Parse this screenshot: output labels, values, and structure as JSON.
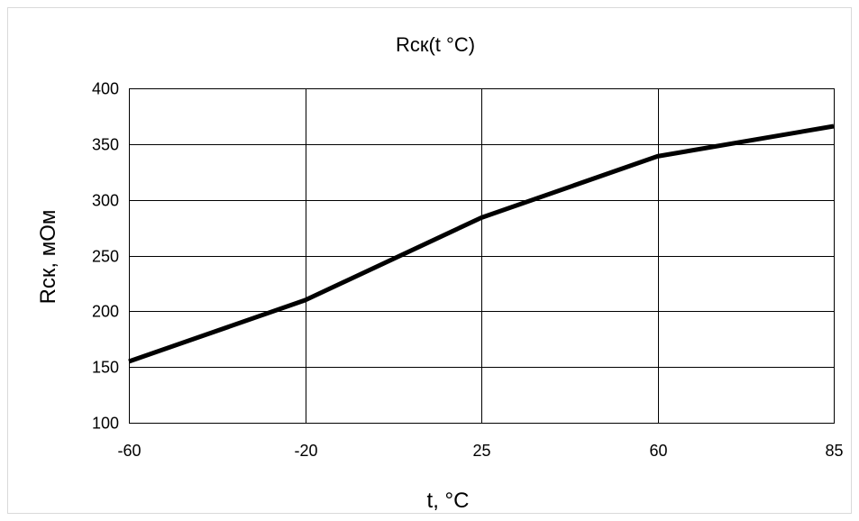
{
  "chart_data": {
    "type": "line",
    "title": "Rск(t °C)",
    "xlabel": "t, °C",
    "ylabel": "Rск, мОм",
    "categories": [
      "-60",
      "-20",
      "25",
      "60",
      "85"
    ],
    "x": [
      -60,
      -20,
      25,
      60,
      85
    ],
    "series": [
      {
        "values": [
          155,
          210,
          284,
          339,
          366
        ]
      }
    ],
    "ylim": [
      100,
      400
    ],
    "yticks": [
      "100",
      "150",
      "200",
      "250",
      "300",
      "350",
      "400"
    ],
    "grid": true,
    "legend": "none",
    "line_color": "#000000"
  }
}
